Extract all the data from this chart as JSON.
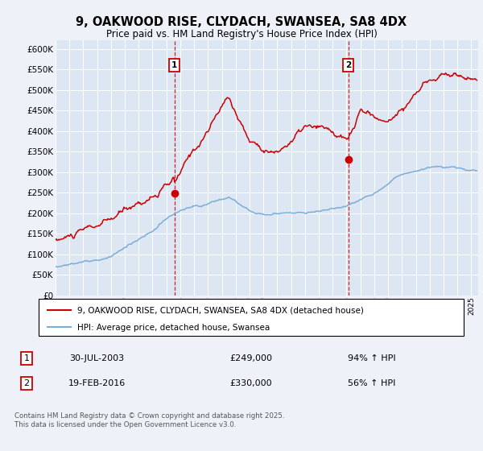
{
  "title": "9, OAKWOOD RISE, CLYDACH, SWANSEA, SA8 4DX",
  "subtitle": "Price paid vs. HM Land Registry's House Price Index (HPI)",
  "ylim": [
    0,
    620000
  ],
  "yticks": [
    0,
    50000,
    100000,
    150000,
    200000,
    250000,
    300000,
    350000,
    400000,
    450000,
    500000,
    550000,
    600000
  ],
  "xlim_start": 1995.0,
  "xlim_end": 2025.5,
  "bg_color": "#eef2f8",
  "plot_bg": "#dde6f3",
  "grid_color": "#ffffff",
  "sale1_year": 2003.58,
  "sale1_price": 249000,
  "sale1_label": "1",
  "sale2_year": 2016.13,
  "sale2_price": 330000,
  "sale2_label": "2",
  "legend_house": "9, OAKWOOD RISE, CLYDACH, SWANSEA, SA8 4DX (detached house)",
  "legend_hpi": "HPI: Average price, detached house, Swansea",
  "table_row1": [
    "1",
    "30-JUL-2003",
    "£249,000",
    "94% ↑ HPI"
  ],
  "table_row2": [
    "2",
    "19-FEB-2016",
    "£330,000",
    "56% ↑ HPI"
  ],
  "footnote": "Contains HM Land Registry data © Crown copyright and database right 2025.\nThis data is licensed under the Open Government Licence v3.0.",
  "house_color": "#cc0000",
  "hpi_color": "#7aaed6",
  "vline_color": "#cc0000"
}
